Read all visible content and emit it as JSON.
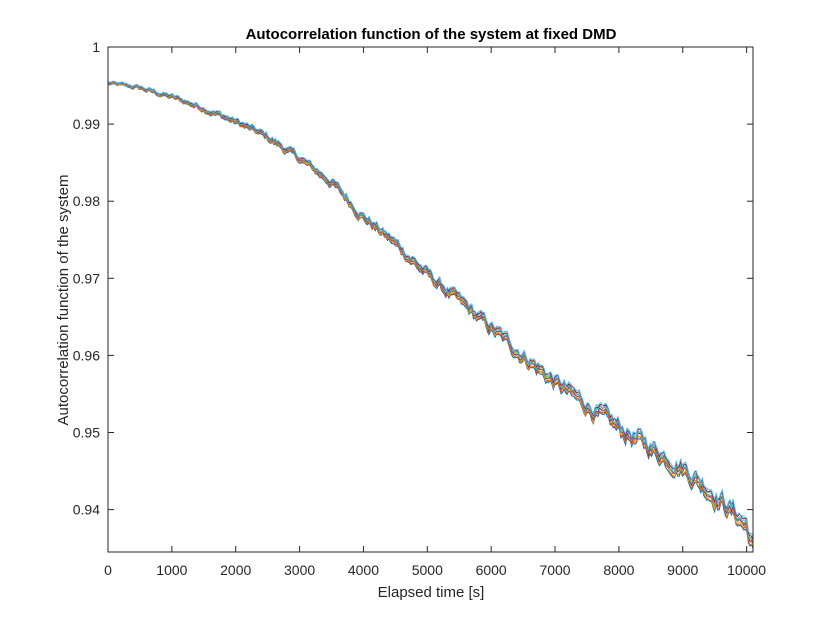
{
  "chart_data": {
    "type": "line",
    "title": "Autocorrelation function of the system at fixed DMD",
    "xlabel": "Elapsed time [s]",
    "ylabel": "Autocorrelation function of the system",
    "xlim": [
      0,
      10100
    ],
    "ylim": [
      0.9345,
      1.0
    ],
    "xticks": [
      0,
      1000,
      2000,
      3000,
      4000,
      5000,
      6000,
      7000,
      8000,
      9000,
      10000
    ],
    "xtick_labels": [
      "0",
      "1000",
      "2000",
      "3000",
      "4000",
      "5000",
      "6000",
      "7000",
      "8000",
      "9000",
      "10000"
    ],
    "yticks": [
      0.94,
      0.95,
      0.96,
      0.97,
      0.98,
      0.99,
      1.0
    ],
    "ytick_labels": [
      "0.94",
      "0.95",
      "0.96",
      "0.97",
      "0.98",
      "0.99",
      "1"
    ],
    "grid": false,
    "box": true,
    "series_count": 8,
    "series_colors": [
      "#0072bd",
      "#d95319",
      "#edb120",
      "#7e2f8e",
      "#77ac30",
      "#4dbeee",
      "#a2142f",
      "#4dbeee"
    ],
    "trend_x": [
      0,
      500,
      1000,
      1500,
      2000,
      2500,
      3000,
      3500,
      4000,
      4500,
      5000,
      5500,
      6000,
      6500,
      7000,
      7500,
      8000,
      8500,
      9000,
      9500,
      10000,
      10100
    ],
    "trend_y": [
      0.9953,
      0.9947,
      0.9935,
      0.9921,
      0.9903,
      0.9883,
      0.9855,
      0.9825,
      0.978,
      0.9745,
      0.9705,
      0.967,
      0.9635,
      0.96,
      0.9565,
      0.9535,
      0.9505,
      0.948,
      0.9455,
      0.942,
      0.938,
      0.935
    ]
  }
}
